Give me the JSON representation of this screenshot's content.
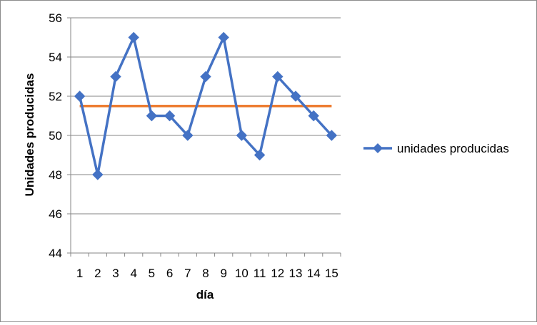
{
  "chart_data": {
    "type": "line",
    "title": "",
    "xlabel": "día",
    "ylabel": "Unidades producidas",
    "x": [
      "1",
      "2",
      "3",
      "4",
      "5",
      "6",
      "7",
      "8",
      "9",
      "10",
      "11",
      "12",
      "13",
      "14",
      "15"
    ],
    "ylim": [
      44,
      56
    ],
    "yticks": [
      44,
      46,
      48,
      50,
      52,
      54,
      56
    ],
    "grid": true,
    "legend_position": "right",
    "series": [
      {
        "name": "unidades producidas",
        "values": [
          52,
          48,
          53,
          55,
          51,
          51,
          50,
          53,
          55,
          50,
          49,
          53,
          52,
          51,
          50
        ],
        "color": "#4472C4",
        "marker": "diamond"
      }
    ],
    "reference_line": {
      "value": 51.5,
      "color": "#ED7D31"
    }
  }
}
